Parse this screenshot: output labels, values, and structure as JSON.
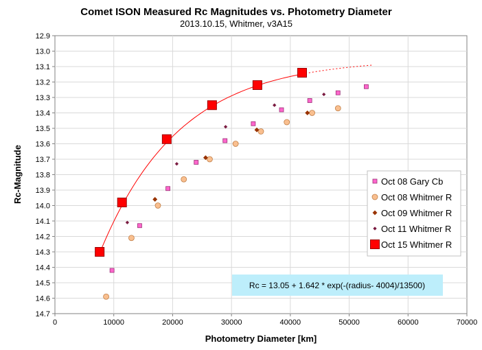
{
  "chart_data": {
    "type": "scatter",
    "title": "Comet ISON Measured Rc Magnitudes vs. Photometry Diameter",
    "subtitle": "2013.10.15,  Whitmer, v3A15",
    "xlabel": "Photometry Diameter  [km]",
    "ylabel": "Rc-Magnitude",
    "xlim": [
      0,
      70000
    ],
    "ylim": [
      12.9,
      14.7
    ],
    "y_inverted": true,
    "grid": true,
    "legend_position": "right",
    "x_ticks": [
      "0",
      "10000",
      "20000",
      "30000",
      "40000",
      "50000",
      "60000",
      "70000"
    ],
    "y_ticks": [
      "12.9",
      "13.0",
      "13.1",
      "13.2",
      "13.3",
      "13.4",
      "13.5",
      "13.6",
      "13.7",
      "13.8",
      "13.9",
      "14.0",
      "14.1",
      "14.2",
      "14.3",
      "14.4",
      "14.5",
      "14.6",
      "14.7"
    ],
    "series": [
      {
        "name": "Oct 08 Gary Cb",
        "marker": "square",
        "color": "#ff66cc",
        "edge": "#993377",
        "points": [
          [
            9700,
            14.42
          ],
          [
            14400,
            14.13
          ],
          [
            19200,
            13.89
          ],
          [
            24000,
            13.72
          ],
          [
            28900,
            13.58
          ],
          [
            33700,
            13.47
          ],
          [
            38500,
            13.38
          ],
          [
            43300,
            13.32
          ],
          [
            48100,
            13.27
          ],
          [
            52900,
            13.23
          ]
        ]
      },
      {
        "name": "Oct 08 Whitmer R",
        "marker": "circle",
        "color": "#f9bf8f",
        "edge": "#c07f48",
        "points": [
          [
            8700,
            14.59
          ],
          [
            13000,
            14.21
          ],
          [
            17500,
            14.0
          ],
          [
            21900,
            13.83
          ],
          [
            26300,
            13.7
          ],
          [
            30700,
            13.6
          ],
          [
            35000,
            13.52
          ],
          [
            39400,
            13.46
          ],
          [
            43700,
            13.4
          ],
          [
            48100,
            13.37
          ]
        ]
      },
      {
        "name": "Oct 09 Whitmer R",
        "marker": "diamond",
        "color": "#993300",
        "edge": "#993300",
        "points": [
          [
            17000,
            13.96
          ],
          [
            25600,
            13.69
          ],
          [
            34300,
            13.51
          ],
          [
            42900,
            13.4
          ]
        ]
      },
      {
        "name": "Oct 11 Whitmer R",
        "marker": "diamond-small",
        "color": "#7a1a40",
        "edge": "#7a1a40",
        "points": [
          [
            12300,
            14.11
          ],
          [
            20700,
            13.73
          ],
          [
            29000,
            13.49
          ],
          [
            37300,
            13.35
          ],
          [
            45700,
            13.28
          ]
        ]
      },
      {
        "name": "Oct 15 Whitmer R",
        "marker": "square-large",
        "color": "#ff0000",
        "edge": "#990000",
        "points": [
          [
            7600,
            14.3
          ],
          [
            11400,
            13.98
          ],
          [
            19000,
            13.57
          ],
          [
            26700,
            13.35
          ],
          [
            34400,
            13.22
          ],
          [
            42000,
            13.14
          ]
        ]
      }
    ],
    "fit": {
      "label": "Rc = 13.05 + 1.642 * exp(-(radius- 4004)/13500)",
      "color": "#ff0000",
      "a": 13.05,
      "b": 1.642,
      "c": 4004,
      "d": 13500,
      "solid_range": [
        7600,
        42000
      ],
      "dotted_range": [
        42000,
        54000
      ]
    }
  }
}
